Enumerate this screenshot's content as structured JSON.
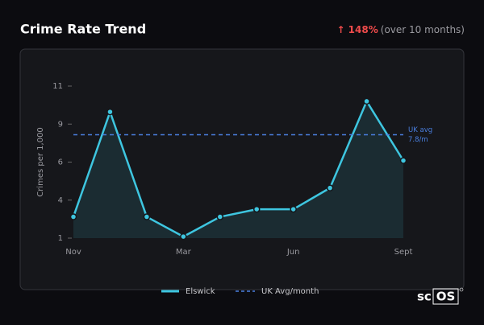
{
  "header": {
    "title": "Crime Rate Trend",
    "change": "↑ 148%",
    "period": "(over 10 months)"
  },
  "chart_data": {
    "type": "line",
    "ylabel": "Crimes per 1,000",
    "categories": [
      "Nov",
      null,
      null,
      "Mar",
      null,
      null,
      "Jun",
      null,
      null,
      "Sept"
    ],
    "series": [
      {
        "name": "Elswick",
        "color": "#3ec6e0",
        "values": [
          2.4,
          9.3,
          2.4,
          1.1,
          2.4,
          2.9,
          2.9,
          4.3,
          10.0,
          6.1
        ]
      }
    ],
    "reference": {
      "name": "UK Avg/month",
      "color": "#4a7fe0",
      "value": 7.8,
      "label": "UK avg",
      "value_label": "7.8/m"
    },
    "ylim": [
      1,
      11
    ],
    "yticks": [
      1,
      {
        "value": 3.5,
        "label": "4"
      },
      6,
      {
        "value": 8.5,
        "label": "9"
      },
      11
    ]
  },
  "logo": [
    "sc",
    "OS"
  ]
}
